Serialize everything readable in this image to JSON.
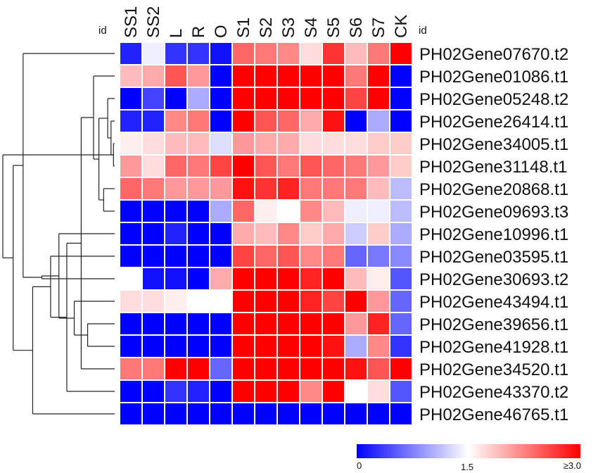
{
  "chart_data": {
    "type": "heatmap",
    "row_header_label": "id",
    "col_header_label": "id",
    "columns": [
      "SS1",
      "SS2",
      "L",
      "R",
      "O",
      "S1",
      "S2",
      "S3",
      "S4",
      "S5",
      "S6",
      "S7",
      "CK"
    ],
    "rows": [
      "PH02Gene07670.t2",
      "PH02Gene01086.t1",
      "PH02Gene05248.t2",
      "PH02Gene26414.t1",
      "PH02Gene34005.t1",
      "PH02Gene31148.t1",
      "PH02Gene20868.t1",
      "PH02Gene09693.t3",
      "PH02Gene10996.t1",
      "PH02Gene03595.t1",
      "PH02Gene30693.t2",
      "PH02Gene43494.t1",
      "PH02Gene39656.t1",
      "PH02Gene41928.t1",
      "PH02Gene34520.t1",
      "PH02Gene43370.t2",
      "PH02Gene46765.t1"
    ],
    "values": [
      [
        0.2,
        1.4,
        0.3,
        0.3,
        0.1,
        2.4,
        2.3,
        2.2,
        1.7,
        2.7,
        1.9,
        2.3,
        3.0
      ],
      [
        1.9,
        2.0,
        2.5,
        2.1,
        0.0,
        3.0,
        3.0,
        3.0,
        3.0,
        3.0,
        2.3,
        3.0,
        0.0
      ],
      [
        0.0,
        0.4,
        0.0,
        1.0,
        0.0,
        3.0,
        3.0,
        3.0,
        3.0,
        3.0,
        2.6,
        3.0,
        0.0
      ],
      [
        0.2,
        0.2,
        2.2,
        2.3,
        0.0,
        3.0,
        2.5,
        2.4,
        2.0,
        2.9,
        0.0,
        1.0,
        0.0
      ],
      [
        1.6,
        1.7,
        1.9,
        1.9,
        1.3,
        2.1,
        2.0,
        2.0,
        1.7,
        1.7,
        1.7,
        1.8,
        1.8
      ],
      [
        2.1,
        1.7,
        2.4,
        2.3,
        2.6,
        3.0,
        2.5,
        2.3,
        2.5,
        2.4,
        2.3,
        2.1,
        1.8
      ],
      [
        2.4,
        2.3,
        2.1,
        2.1,
        2.1,
        2.9,
        2.7,
        2.8,
        2.3,
        2.3,
        2.3,
        1.9,
        1.1
      ],
      [
        0.0,
        0.0,
        0.0,
        0.0,
        1.0,
        2.4,
        1.6,
        1.5,
        2.2,
        1.9,
        1.4,
        1.4,
        1.1
      ],
      [
        0.0,
        0.0,
        0.2,
        0.0,
        0.0,
        2.0,
        1.9,
        2.2,
        1.8,
        2.0,
        1.2,
        1.8,
        1.0
      ],
      [
        0.0,
        0.0,
        0.0,
        0.0,
        0.0,
        2.6,
        2.4,
        2.5,
        2.2,
        2.3,
        0.6,
        0.7,
        0.8
      ],
      [
        1.5,
        0.1,
        0.1,
        0.0,
        2.0,
        3.0,
        3.0,
        3.0,
        2.8,
        3.0,
        1.9,
        1.6,
        0.5
      ],
      [
        1.7,
        1.7,
        1.6,
        1.5,
        1.5,
        3.0,
        3.0,
        3.0,
        2.8,
        2.6,
        3.0,
        2.1,
        0.6
      ],
      [
        0.0,
        0.0,
        0.0,
        0.0,
        0.0,
        3.0,
        3.0,
        3.0,
        3.0,
        3.0,
        2.1,
        2.8,
        0.6
      ],
      [
        0.0,
        0.0,
        0.0,
        0.0,
        0.0,
        3.0,
        3.0,
        3.0,
        3.0,
        2.9,
        1.0,
        2.2,
        0.3
      ],
      [
        2.3,
        2.3,
        3.0,
        3.0,
        0.6,
        3.0,
        3.0,
        3.0,
        3.0,
        3.0,
        2.9,
        2.5,
        3.0
      ],
      [
        0.0,
        0.0,
        0.3,
        0.2,
        0.0,
        3.0,
        3.0,
        3.0,
        2.2,
        3.0,
        1.5,
        1.7,
        0.5
      ],
      [
        0.0,
        0.0,
        0.0,
        0.0,
        0.0,
        0.0,
        0.0,
        0.0,
        0.0,
        0.0,
        0.0,
        0.0,
        0.0
      ]
    ],
    "colorscale": {
      "min": 0,
      "mid": 1.5,
      "max": 3.0,
      "colors": [
        "#0000ff",
        "#ffffff",
        "#ff0000"
      ],
      "tick_labels": [
        "0",
        "1.5",
        "≥3.0"
      ]
    },
    "dendrogram": {
      "side": "left",
      "merges": [
        [
          4,
          5
        ],
        [
          3,
          17
        ],
        [
          2,
          18
        ],
        [
          6,
          7
        ],
        [
          19,
          20
        ],
        [
          1,
          21
        ],
        [
          12,
          13
        ],
        [
          22,
          14
        ],
        [
          23,
          11
        ],
        [
          24,
          15
        ],
        [
          25,
          8
        ],
        [
          26,
          9
        ],
        [
          27,
          10
        ],
        [
          16,
          28
        ],
        [
          0,
          29
        ],
        [
          30,
          31
        ],
        [
          32,
          17
        ]
      ]
    }
  }
}
